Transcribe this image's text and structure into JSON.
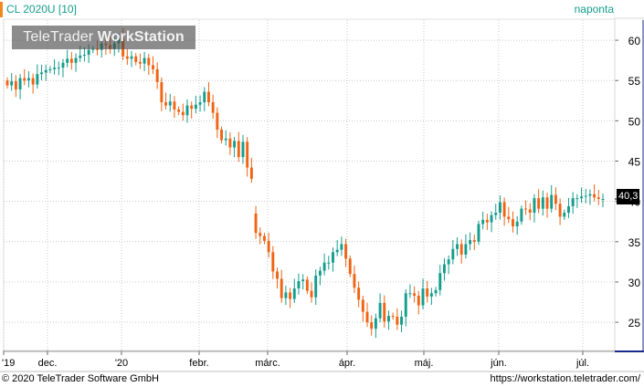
{
  "header": {
    "instrument": "CL 2020U [10]",
    "period": "naponta"
  },
  "watermark": {
    "brand_light": "TeleTrader ",
    "brand_bold": "WorkStation"
  },
  "footer": {
    "copyright": "© 2020 TeleTrader Software GmbH",
    "url": "https://workstation.teletrader.com/"
  },
  "colors": {
    "up": "#159d8d",
    "down": "#f06414",
    "accent": "#f08a1c",
    "grid": "#c8c8c8",
    "axis_box": "#1a2a8c"
  },
  "chart_data": {
    "type": "candlestick",
    "title": "CL 2020U [10]",
    "xlabel": "",
    "ylabel": "",
    "ylim": [
      21.5,
      62.5
    ],
    "y_ticks": [
      25,
      30,
      35,
      40,
      45,
      50,
      55,
      60
    ],
    "x_tick_labels": [
      "'19",
      "dec.",
      "'20",
      "febr.",
      "márc.",
      "ápr.",
      "máj.",
      "jún.",
      "júl."
    ],
    "grid": true,
    "last_value": "40,3",
    "open": [
      55.0,
      54.4,
      54.9,
      53.9,
      55.3,
      55.0,
      55.3,
      54.5,
      55.8,
      56.0,
      56.3,
      56.4,
      56.6,
      56.6,
      57.2,
      57.7,
      57.2,
      57.8,
      58.1,
      58.2,
      58.8,
      58.9,
      58.8,
      59.6,
      59.4,
      58.9,
      59.6,
      60.3,
      58.0,
      57.7,
      58.0,
      57.3,
      57.1,
      57.8,
      56.9,
      56.4,
      54.8,
      52.3,
      51.9,
      52.4,
      51.4,
      51.1,
      50.7,
      51.9,
      51.5,
      52.0,
      52.3,
      53.6,
      52.3,
      51.0,
      48.9,
      47.6,
      47.8,
      46.7,
      47.5,
      45.5,
      47.4,
      44.2,
      38.5,
      36.1,
      35.7,
      35.1,
      33.7,
      31.3,
      30.4,
      28.0,
      28.7,
      27.9,
      29.2,
      30.1,
      30.3,
      28.9,
      28.1,
      30.8,
      31.4,
      32.4,
      32.4,
      33.7,
      34.0,
      34.7,
      32.9,
      31.0,
      29.3,
      27.8,
      26.3,
      25.0,
      24.2,
      25.5,
      27.4,
      25.1,
      25.8,
      25.7,
      24.7,
      25.7,
      28.6,
      28.6,
      28.3,
      27.1,
      29.2,
      28.2,
      28.6,
      29.0,
      31.1,
      32.2,
      32.8,
      34.1,
      34.7,
      33.4,
      34.7,
      35.2,
      35.0,
      37.2,
      37.7,
      37.4,
      38.3,
      38.6,
      39.9,
      38.1,
      37.8,
      36.9,
      37.5,
      39.1,
      39.0,
      38.6,
      40.4,
      39.1,
      40.5,
      39.1,
      40.8,
      39.7,
      38.1,
      38.6,
      39.4,
      40.4,
      40.4,
      40.6,
      40.7,
      40.9,
      40.5,
      40.3
    ],
    "close": [
      54.4,
      54.9,
      53.9,
      55.3,
      55.0,
      55.3,
      54.5,
      55.8,
      56.0,
      56.3,
      56.4,
      56.6,
      56.6,
      57.2,
      57.7,
      57.2,
      57.8,
      58.1,
      58.2,
      58.8,
      58.9,
      58.8,
      59.6,
      59.4,
      58.9,
      59.6,
      60.3,
      58.0,
      57.7,
      58.0,
      57.3,
      57.1,
      57.8,
      56.9,
      56.4,
      54.8,
      52.3,
      51.9,
      52.4,
      51.4,
      51.1,
      50.7,
      51.9,
      51.5,
      52.0,
      52.3,
      53.6,
      52.3,
      51.0,
      48.9,
      47.6,
      47.8,
      46.7,
      47.5,
      45.5,
      47.4,
      44.2,
      42.8,
      36.1,
      35.7,
      35.1,
      33.7,
      31.3,
      30.4,
      28.0,
      28.7,
      27.9,
      29.2,
      30.1,
      30.3,
      28.9,
      28.1,
      30.8,
      31.4,
      32.4,
      32.4,
      33.7,
      34.0,
      34.7,
      32.9,
      31.0,
      29.3,
      27.8,
      26.3,
      25.0,
      24.2,
      25.5,
      27.4,
      25.1,
      25.8,
      25.7,
      24.7,
      25.7,
      28.6,
      28.6,
      28.3,
      27.1,
      29.2,
      28.2,
      28.6,
      29.0,
      31.1,
      32.2,
      32.8,
      34.1,
      34.7,
      33.4,
      34.7,
      35.2,
      35.0,
      37.2,
      37.7,
      37.4,
      38.3,
      38.6,
      39.9,
      38.1,
      37.8,
      36.9,
      37.5,
      39.1,
      39.0,
      38.6,
      40.4,
      39.1,
      40.5,
      39.1,
      40.8,
      39.7,
      38.1,
      38.6,
      39.4,
      40.4,
      40.4,
      40.6,
      40.7,
      40.9,
      40.5,
      40.3,
      40.3
    ]
  }
}
